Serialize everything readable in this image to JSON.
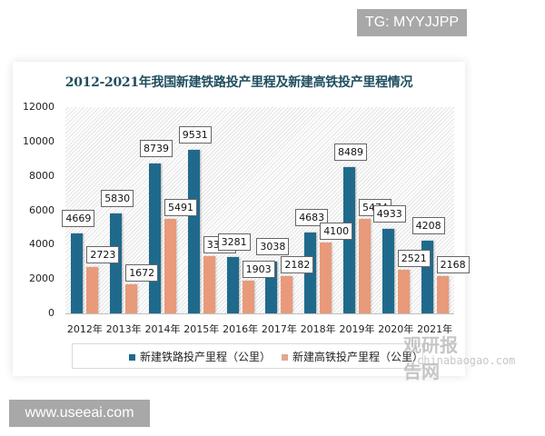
{
  "watermarks": {
    "top_right": "TG: MYYJJPP",
    "bottom_left": "www.useeai.com",
    "logo_cn": "观研报告网",
    "logo_en": "chinabaogao.com"
  },
  "chart_data": {
    "type": "bar",
    "title": "2012-2021年我国新建铁路投产里程及新建高铁投产里程情况",
    "xlabel": "",
    "ylabel": "",
    "ylim": [
      0,
      12000
    ],
    "yticks": [
      0,
      2000,
      4000,
      6000,
      8000,
      10000,
      12000
    ],
    "categories": [
      "2012年",
      "2013年",
      "2014年",
      "2015年",
      "2016年",
      "2017年",
      "2018年",
      "2019年",
      "2020年",
      "2021年"
    ],
    "series": [
      {
        "name": "新建铁路投产里程（公里）",
        "color": "#1f6a8c",
        "values": [
          4669,
          5830,
          8739,
          9531,
          3281,
          3038,
          4683,
          8489,
          4933,
          4208
        ]
      },
      {
        "name": "新建高铁投产里程（公里）",
        "color": "#e89a7a",
        "values": [
          2723,
          1672,
          5491,
          3306,
          1903,
          2182,
          4100,
          5474,
          2521,
          2168
        ]
      }
    ],
    "grid": false,
    "legend_position": "bottom",
    "data_labels": true
  }
}
